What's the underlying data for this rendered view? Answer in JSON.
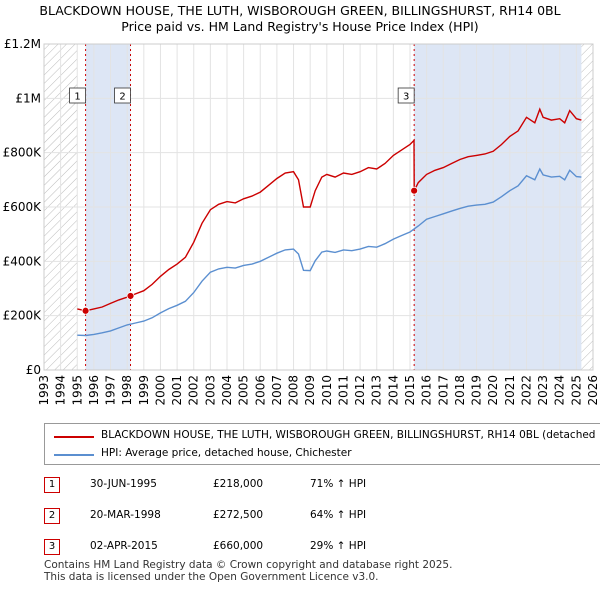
{
  "header": {
    "title_line1": "BLACKDOWN HOUSE, THE LUTH, WISBOROUGH GREEN, BILLINGSHURST, RH14 0BL",
    "title_line2": "Price paid vs. HM Land Registry's House Price Index (HPI)"
  },
  "colors": {
    "property": "#cc0000",
    "hpi": "#5b8fd0",
    "shade": "#dde6f5",
    "hatch": "#bbbbbb"
  },
  "chart_data": {
    "type": "line",
    "title": "Price paid vs. HM Land Registry's House Price Index (HPI)",
    "xlabel": "",
    "ylabel": "",
    "xlim": [
      1993,
      2026
    ],
    "ylim": [
      0,
      1200000
    ],
    "y_ticks": [
      0,
      200000,
      400000,
      600000,
      800000,
      1000000,
      1200000
    ],
    "y_tick_labels": [
      "£0",
      "£200K",
      "£400K",
      "£600K",
      "£800K",
      "£1M",
      "£1.2M"
    ],
    "x_ticks": [
      1993,
      1994,
      1995,
      1996,
      1997,
      1998,
      1999,
      2000,
      2001,
      2002,
      2003,
      2004,
      2005,
      2006,
      2007,
      2008,
      2009,
      2010,
      2011,
      2012,
      2013,
      2014,
      2015,
      2016,
      2017,
      2018,
      2019,
      2020,
      2021,
      2022,
      2023,
      2024,
      2025,
      2026
    ],
    "x_tick_labels": [
      "1993",
      "1994",
      "1995",
      "1996",
      "1997",
      "1998",
      "1999",
      "2000",
      "2001",
      "2002",
      "2003",
      "2004",
      "2005",
      "2006",
      "2007",
      "2008",
      "2009",
      "2010",
      "2011",
      "2012",
      "2013",
      "2014",
      "2015",
      "2016",
      "2017",
      "2018",
      "2019",
      "2020",
      "2021",
      "2022",
      "2023",
      "2024",
      "2025",
      "2026"
    ],
    "grid": true,
    "shaded_ranges": [
      [
        1995.5,
        1998.2
      ],
      [
        2015.25,
        2025.3
      ]
    ],
    "hatched_ranges": [
      [
        1993,
        1995.0
      ],
      [
        2025.3,
        2026
      ]
    ],
    "series": [
      {
        "name": "BLACKDOWN HOUSE, THE LUTH, WISBOROUGH GREEN, BILLINGSHURST, RH14 0BL (detached",
        "color": "#cc0000",
        "x": [
          1995.0,
          1995.5,
          1996.0,
          1996.5,
          1997.0,
          1997.5,
          1998.2,
          1998.5,
          1999.0,
          1999.5,
          2000.0,
          2000.5,
          2001.0,
          2001.5,
          2002.0,
          2002.5,
          2003.0,
          2003.5,
          2004.0,
          2004.5,
          2005.0,
          2005.5,
          2006.0,
          2006.5,
          2007.0,
          2007.5,
          2008.0,
          2008.3,
          2008.6,
          2009.0,
          2009.3,
          2009.7,
          2010.0,
          2010.5,
          2011.0,
          2011.5,
          2012.0,
          2012.5,
          2013.0,
          2013.5,
          2014.0,
          2014.5,
          2015.0,
          2015.24,
          2015.25,
          2015.5,
          2016.0,
          2016.5,
          2017.0,
          2017.5,
          2018.0,
          2018.5,
          2019.0,
          2019.5,
          2020.0,
          2020.5,
          2021.0,
          2021.5,
          2022.0,
          2022.5,
          2022.8,
          2023.0,
          2023.5,
          2024.0,
          2024.3,
          2024.6,
          2025.0,
          2025.3
        ],
        "y": [
          225000,
          218000,
          225000,
          232000,
          245000,
          258000,
          272500,
          280000,
          292000,
          315000,
          345000,
          370000,
          390000,
          415000,
          470000,
          540000,
          590000,
          610000,
          620000,
          615000,
          630000,
          640000,
          655000,
          680000,
          705000,
          725000,
          730000,
          700000,
          600000,
          600000,
          660000,
          710000,
          720000,
          710000,
          725000,
          720000,
          730000,
          745000,
          740000,
          760000,
          790000,
          810000,
          830000,
          845000,
          660000,
          690000,
          720000,
          735000,
          745000,
          760000,
          775000,
          785000,
          790000,
          795000,
          805000,
          830000,
          860000,
          880000,
          930000,
          910000,
          960000,
          930000,
          920000,
          925000,
          910000,
          955000,
          925000,
          920000
        ]
      },
      {
        "name": "HPI: Average price, detached house, Chichester",
        "color": "#5b8fd0",
        "x": [
          1995.0,
          1995.5,
          1996.0,
          1996.5,
          1997.0,
          1997.5,
          1998.0,
          1998.5,
          1999.0,
          1999.5,
          2000.0,
          2000.5,
          2001.0,
          2001.5,
          2002.0,
          2002.5,
          2003.0,
          2003.5,
          2004.0,
          2004.5,
          2005.0,
          2005.5,
          2006.0,
          2006.5,
          2007.0,
          2007.5,
          2008.0,
          2008.3,
          2008.6,
          2009.0,
          2009.3,
          2009.7,
          2010.0,
          2010.5,
          2011.0,
          2011.5,
          2012.0,
          2012.5,
          2013.0,
          2013.5,
          2014.0,
          2014.5,
          2015.0,
          2015.5,
          2016.0,
          2016.5,
          2017.0,
          2017.5,
          2018.0,
          2018.5,
          2019.0,
          2019.5,
          2020.0,
          2020.5,
          2021.0,
          2021.5,
          2022.0,
          2022.5,
          2022.8,
          2023.0,
          2023.5,
          2024.0,
          2024.3,
          2024.6,
          2025.0,
          2025.3
        ],
        "y": [
          128000,
          127000,
          131000,
          137000,
          144000,
          155000,
          166000,
          173000,
          180000,
          192000,
          210000,
          226000,
          238000,
          253000,
          285000,
          327000,
          360000,
          372000,
          378000,
          375000,
          385000,
          390000,
          400000,
          415000,
          430000,
          442000,
          445000,
          427000,
          367000,
          366000,
          402000,
          434000,
          438000,
          433000,
          442000,
          439000,
          445000,
          455000,
          452000,
          465000,
          482000,
          495000,
          508000,
          530000,
          555000,
          565000,
          575000,
          585000,
          595000,
          603000,
          607000,
          610000,
          618000,
          638000,
          660000,
          678000,
          715000,
          700000,
          740000,
          718000,
          710000,
          713000,
          700000,
          735000,
          712000,
          710000
        ]
      }
    ],
    "sales": [
      {
        "label": "1",
        "x": 1995.5,
        "price": 218000
      },
      {
        "label": "2",
        "x": 1998.2,
        "price": 272500
      },
      {
        "label": "3",
        "x": 2015.25,
        "price": 660000
      }
    ]
  },
  "legend": {
    "property_label": "BLACKDOWN HOUSE, THE LUTH, WISBOROUGH GREEN, BILLINGSHURST, RH14 0BL (detached",
    "hpi_label": "HPI: Average price, detached house, Chichester"
  },
  "transactions": [
    {
      "num": "1",
      "date": "30-JUN-1995",
      "price": "£218,000",
      "hpi": "71% ↑ HPI"
    },
    {
      "num": "2",
      "date": "20-MAR-1998",
      "price": "£272,500",
      "hpi": "64% ↑ HPI"
    },
    {
      "num": "3",
      "date": "02-APR-2015",
      "price": "£660,000",
      "hpi": "29% ↑ HPI"
    }
  ],
  "footer": {
    "line1": "Contains HM Land Registry data © Crown copyright and database right 2025.",
    "line2": "This data is licensed under the Open Government Licence v3.0."
  }
}
